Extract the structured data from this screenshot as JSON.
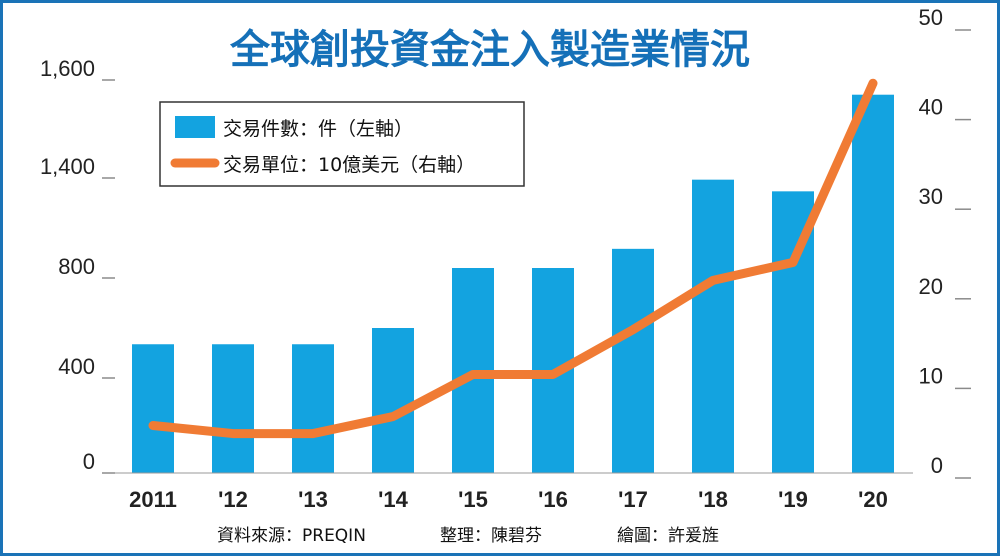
{
  "chart_data": {
    "type": "bar",
    "title": "全球創投資金注入製造業情況",
    "categories": [
      "2011",
      "'12",
      "'13",
      "'14",
      "'15",
      "'16",
      "'17",
      "'18",
      "'19",
      "'20"
    ],
    "series": [
      {
        "name": "交易件數：件（左軸）",
        "type": "bar",
        "axis": "left",
        "color": "#13a3e0",
        "values": [
          535,
          535,
          535,
          600,
          860,
          860,
          975,
          1390,
          1320,
          1570
        ]
      },
      {
        "name": "交易單位：10億美元（右軸）",
        "type": "line",
        "axis": "right",
        "color": "#f07b34",
        "values": [
          5.3,
          4.4,
          4.4,
          6.3,
          11,
          11,
          16,
          21.5,
          23.5,
          43.5
        ]
      }
    ],
    "y_left": {
      "ticks": [
        0,
        400,
        800,
        1400,
        1600
      ],
      "tick_labels": [
        "0",
        "400",
        "800",
        "1,400",
        "1,600"
      ],
      "axis_break": true
    },
    "y_right": {
      "ticks": [
        0,
        10,
        20,
        30,
        40,
        50
      ],
      "tick_labels": [
        "0",
        "10",
        "20",
        "30",
        "40",
        "50"
      ],
      "ylim": [
        0,
        50
      ]
    },
    "legend": {
      "position": "top-left"
    },
    "grid": false
  },
  "footer": {
    "source": "資料來源：PREQIN",
    "editor": "整理：陳碧芬",
    "illustrator": "繪圖：許爰旌"
  }
}
